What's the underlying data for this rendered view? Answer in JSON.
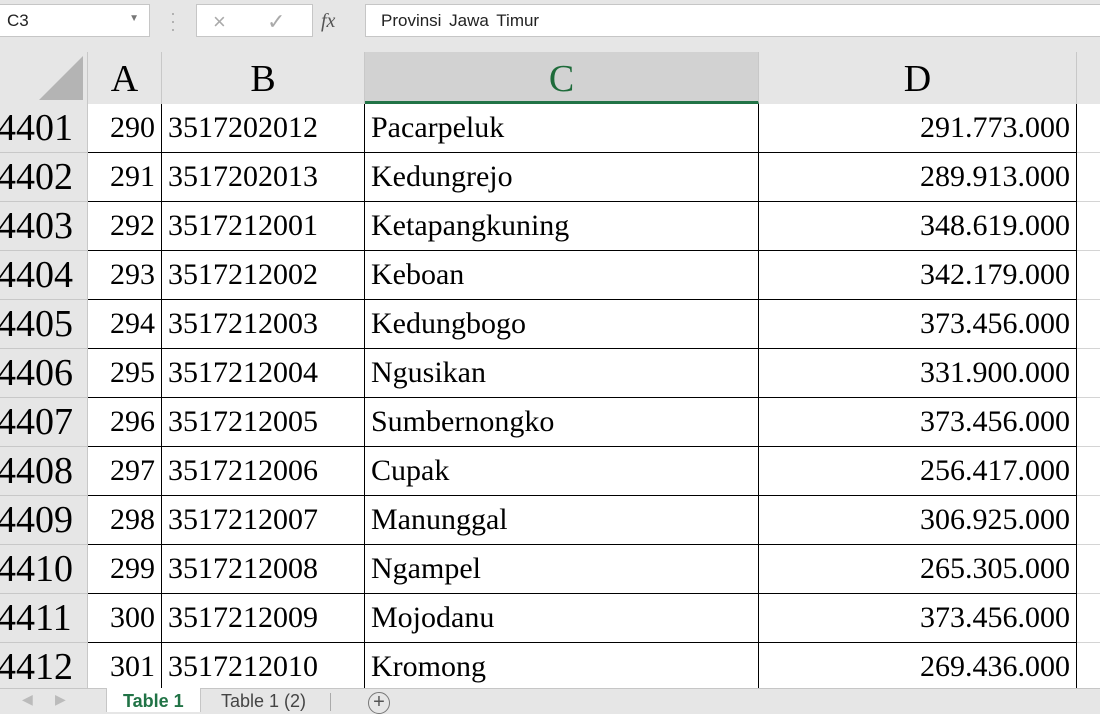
{
  "formula_bar": {
    "name_box": "C3",
    "formula": "Provinsi  Jawa  Timur",
    "cancel_icon": "×",
    "enter_icon": "✓",
    "fx_label": "fx"
  },
  "columns": [
    "A",
    "B",
    "C",
    "D"
  ],
  "selected_column": "C",
  "rows": [
    {
      "row": "4401",
      "a": "290",
      "b": "3517202012",
      "c": "Pacarpeluk",
      "d": "291.773.000"
    },
    {
      "row": "4402",
      "a": "291",
      "b": "3517202013",
      "c": "Kedungrejo",
      "d": "289.913.000"
    },
    {
      "row": "4403",
      "a": "292",
      "b": "3517212001",
      "c": "Ketapangkuning",
      "d": "348.619.000"
    },
    {
      "row": "4404",
      "a": "293",
      "b": "3517212002",
      "c": "Keboan",
      "d": "342.179.000"
    },
    {
      "row": "4405",
      "a": "294",
      "b": "3517212003",
      "c": "Kedungbogo",
      "d": "373.456.000"
    },
    {
      "row": "4406",
      "a": "295",
      "b": "3517212004",
      "c": "Ngusikan",
      "d": "331.900.000"
    },
    {
      "row": "4407",
      "a": "296",
      "b": "3517212005",
      "c": "Sumbernongko",
      "d": "373.456.000"
    },
    {
      "row": "4408",
      "a": "297",
      "b": "3517212006",
      "c": "Cupak",
      "d": "256.417.000"
    },
    {
      "row": "4409",
      "a": "298",
      "b": "3517212007",
      "c": "Manunggal",
      "d": "306.925.000"
    },
    {
      "row": "4410",
      "a": "299",
      "b": "3517212008",
      "c": "Ngampel",
      "d": "265.305.000"
    },
    {
      "row": "4411",
      "a": "300",
      "b": "3517212009",
      "c": "Mojodanu",
      "d": "373.456.000"
    },
    {
      "row": "4412",
      "a": "301",
      "b": "3517212010",
      "c": "Kromong",
      "d": "269.436.000"
    }
  ],
  "sheet_tabs": [
    {
      "label": "Table 1",
      "active": true
    },
    {
      "label": "Table 1 (2)",
      "active": false
    }
  ],
  "colors": {
    "accent": "#217346"
  }
}
